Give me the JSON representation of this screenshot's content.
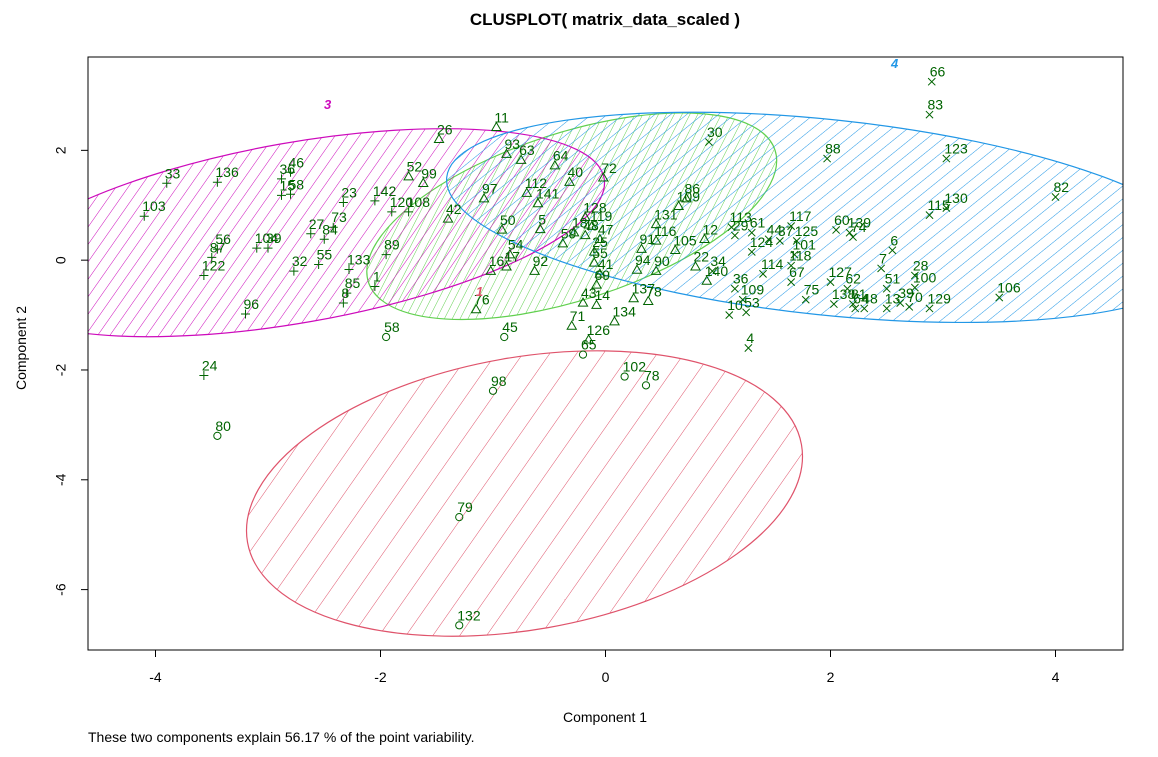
{
  "chart_data": {
    "type": "scatter",
    "title": "CLUSPLOT( matrix_data_scaled )",
    "xlabel": "Component 1",
    "ylabel": "Component 2",
    "caption": "These two components explain 56.17 % of the point variability.",
    "xlim": [
      -4.6,
      4.6
    ],
    "ylim": [
      -7.1,
      3.7
    ],
    "xticks": [
      -4,
      -2,
      0,
      2,
      4
    ],
    "yticks": [
      -6,
      -4,
      -2,
      0,
      2
    ],
    "grid": false,
    "point_color": "#006400",
    "clusters": [
      {
        "label": "1",
        "color": "#DF536B",
        "ellipse": {
          "cx": -0.72,
          "cy": -4.25,
          "rx": 2.5,
          "ry": 2.48,
          "angle": -10
        }
      },
      {
        "label": "2",
        "color": "#61D04F",
        "ellipse": {
          "cx": -0.3,
          "cy": 0.8,
          "rx": 1.9,
          "ry": 1.52,
          "angle": -18
        }
      },
      {
        "label": "3",
        "color": "#CD0BBC",
        "ellipse": {
          "cx": -2.75,
          "cy": 0.5,
          "rx": 2.78,
          "ry": 1.64,
          "angle": -10
        }
      },
      {
        "label": "4",
        "color": "#2297E6",
        "ellipse": {
          "cx": 1.97,
          "cy": 0.78,
          "rx": 3.4,
          "ry": 1.78,
          "angle": 6
        }
      }
    ],
    "cluster_label_points": [
      {
        "label": "1",
        "x": -1.12,
        "y": -0.65
      },
      {
        "label": "3",
        "x": -2.47,
        "y": 2.75
      },
      {
        "label": "4",
        "x": 2.57,
        "y": 3.5
      }
    ],
    "points": [
      {
        "id": "58",
        "x": -1.95,
        "y": -1.4,
        "cluster": 1
      },
      {
        "id": "45",
        "x": -0.9,
        "y": -1.4,
        "cluster": 1
      },
      {
        "id": "65",
        "x": -0.2,
        "y": -1.72,
        "cluster": 1
      },
      {
        "id": "102",
        "x": 0.17,
        "y": -2.12,
        "cluster": 1
      },
      {
        "id": "78",
        "x": 0.36,
        "y": -2.28,
        "cluster": 1
      },
      {
        "id": "98",
        "x": -1.0,
        "y": -2.38,
        "cluster": 1
      },
      {
        "id": "80",
        "x": -3.45,
        "y": -3.2,
        "cluster": 1
      },
      {
        "id": "79",
        "x": -1.3,
        "y": -4.68,
        "cluster": 1
      },
      {
        "id": "132",
        "x": -1.3,
        "y": -6.65,
        "cluster": 1
      },
      {
        "id": "11",
        "x": -0.97,
        "y": 2.42,
        "cluster": 2
      },
      {
        "id": "26",
        "x": -1.48,
        "y": 2.2,
        "cluster": 2
      },
      {
        "id": "93",
        "x": -0.88,
        "y": 1.93,
        "cluster": 2
      },
      {
        "id": "63",
        "x": -0.75,
        "y": 1.82,
        "cluster": 2
      },
      {
        "id": "64",
        "x": -0.45,
        "y": 1.72,
        "cluster": 2
      },
      {
        "id": "72",
        "x": -0.02,
        "y": 1.5,
        "cluster": 2
      },
      {
        "id": "40",
        "x": -0.32,
        "y": 1.42,
        "cluster": 2
      },
      {
        "id": "52",
        "x": -1.75,
        "y": 1.52,
        "cluster": 2
      },
      {
        "id": "99",
        "x": -1.62,
        "y": 1.4,
        "cluster": 2
      },
      {
        "id": "112",
        "x": -0.7,
        "y": 1.22,
        "cluster": 2
      },
      {
        "id": "97",
        "x": -1.08,
        "y": 1.12,
        "cluster": 2
      },
      {
        "id": "141",
        "x": -0.6,
        "y": 1.03,
        "cluster": 2
      },
      {
        "id": "42",
        "x": -1.4,
        "y": 0.75,
        "cluster": 2
      },
      {
        "id": "128",
        "x": -0.18,
        "y": 0.78,
        "cluster": 2
      },
      {
        "id": "50",
        "x": -0.92,
        "y": 0.55,
        "cluster": 2
      },
      {
        "id": "5",
        "x": -0.58,
        "y": 0.56,
        "cluster": 2
      },
      {
        "id": "119",
        "x": -0.12,
        "y": 0.62,
        "cluster": 2
      },
      {
        "id": "18",
        "x": -0.28,
        "y": 0.5,
        "cluster": 2
      },
      {
        "id": "48",
        "x": -0.18,
        "y": 0.45,
        "cluster": 2
      },
      {
        "id": "59",
        "x": -0.38,
        "y": 0.3,
        "cluster": 2
      },
      {
        "id": "47",
        "x": -0.05,
        "y": 0.38,
        "cluster": 2
      },
      {
        "id": "25",
        "x": -0.1,
        "y": 0.15,
        "cluster": 2
      },
      {
        "id": "54",
        "x": -0.85,
        "y": 0.1,
        "cluster": 2
      },
      {
        "id": "16",
        "x": -1.02,
        "y": -0.2,
        "cluster": 2
      },
      {
        "id": "17",
        "x": -0.88,
        "y": -0.12,
        "cluster": 2
      },
      {
        "id": "92",
        "x": -0.63,
        "y": -0.2,
        "cluster": 2
      },
      {
        "id": "55a",
        "x": -0.1,
        "y": -0.05,
        "cluster": 2
      },
      {
        "id": "41",
        "x": -0.05,
        "y": -0.25,
        "cluster": 2
      },
      {
        "id": "69",
        "x": -0.08,
        "y": -0.45,
        "cluster": 2
      },
      {
        "id": "43",
        "x": -0.2,
        "y": -0.78,
        "cluster": 2
      },
      {
        "id": "14",
        "x": -0.08,
        "y": -0.82,
        "cluster": 2
      },
      {
        "id": "71",
        "x": -0.3,
        "y": -1.2,
        "cluster": 2
      },
      {
        "id": "76",
        "x": -1.15,
        "y": -0.9,
        "cluster": 2
      },
      {
        "id": "126",
        "x": -0.15,
        "y": -1.45,
        "cluster": 2
      },
      {
        "id": "134",
        "x": 0.08,
        "y": -1.12,
        "cluster": 2
      },
      {
        "id": "137",
        "x": 0.25,
        "y": -0.7,
        "cluster": 2
      },
      {
        "id": "78a",
        "x": 0.38,
        "y": -0.75,
        "cluster": 2
      },
      {
        "id": "131",
        "x": 0.45,
        "y": 0.65,
        "cluster": 2
      },
      {
        "id": "109",
        "x": 0.65,
        "y": 0.98,
        "cluster": 2
      },
      {
        "id": "86",
        "x": 0.72,
        "y": 1.12,
        "cluster": 2
      },
      {
        "id": "94",
        "x": 0.28,
        "y": -0.18,
        "cluster": 2
      },
      {
        "id": "91",
        "x": 0.32,
        "y": 0.2,
        "cluster": 2
      },
      {
        "id": "116",
        "x": 0.45,
        "y": 0.35,
        "cluster": 2
      },
      {
        "id": "105",
        "x": 0.62,
        "y": 0.18,
        "cluster": 2
      },
      {
        "id": "90",
        "x": 0.45,
        "y": -0.2,
        "cluster": 2
      },
      {
        "id": "12",
        "x": 0.88,
        "y": 0.38,
        "cluster": 2
      },
      {
        "id": "22",
        "x": 0.8,
        "y": -0.12,
        "cluster": 2
      },
      {
        "id": "140",
        "x": 0.9,
        "y": -0.38,
        "cluster": 2
      },
      {
        "id": "33",
        "x": -3.9,
        "y": 1.4,
        "cluster": 3
      },
      {
        "id": "136",
        "x": -3.45,
        "y": 1.42,
        "cluster": 3
      },
      {
        "id": "46",
        "x": -2.8,
        "y": 1.6,
        "cluster": 3
      },
      {
        "id": "36",
        "x": -2.88,
        "y": 1.48,
        "cluster": 3
      },
      {
        "id": "15",
        "x": -2.88,
        "y": 1.18,
        "cluster": 3
      },
      {
        "id": "58b",
        "x": -2.8,
        "y": 1.2,
        "cluster": 3
      },
      {
        "id": "103",
        "x": -4.1,
        "y": 0.8,
        "cluster": 3
      },
      {
        "id": "23",
        "x": -2.33,
        "y": 1.05,
        "cluster": 3
      },
      {
        "id": "142",
        "x": -2.05,
        "y": 1.08,
        "cluster": 3
      },
      {
        "id": "120",
        "x": -1.9,
        "y": 0.88,
        "cluster": 3
      },
      {
        "id": "108",
        "x": -1.75,
        "y": 0.88,
        "cluster": 3
      },
      {
        "id": "73",
        "x": -2.42,
        "y": 0.6,
        "cluster": 3
      },
      {
        "id": "27",
        "x": -2.62,
        "y": 0.48,
        "cluster": 3
      },
      {
        "id": "84",
        "x": -2.5,
        "y": 0.38,
        "cluster": 3
      },
      {
        "id": "104",
        "x": -3.1,
        "y": 0.22,
        "cluster": 3
      },
      {
        "id": "39",
        "x": -3.0,
        "y": 0.22,
        "cluster": 3
      },
      {
        "id": "56",
        "x": -3.45,
        "y": 0.2,
        "cluster": 3
      },
      {
        "id": "87",
        "x": -3.5,
        "y": 0.05,
        "cluster": 3
      },
      {
        "id": "122",
        "x": -3.57,
        "y": -0.28,
        "cluster": 3
      },
      {
        "id": "89",
        "x": -1.95,
        "y": 0.1,
        "cluster": 3
      },
      {
        "id": "55",
        "x": -2.55,
        "y": -0.08,
        "cluster": 3
      },
      {
        "id": "32",
        "x": -2.77,
        "y": -0.2,
        "cluster": 3
      },
      {
        "id": "133",
        "x": -2.28,
        "y": -0.17,
        "cluster": 3
      },
      {
        "id": "85",
        "x": -2.3,
        "y": -0.6,
        "cluster": 3
      },
      {
        "id": "8",
        "x": -2.33,
        "y": -0.78,
        "cluster": 3
      },
      {
        "id": "1",
        "x": -2.05,
        "y": -0.48,
        "cluster": 3
      },
      {
        "id": "96",
        "x": -3.2,
        "y": -0.98,
        "cluster": 3
      },
      {
        "id": "24",
        "x": -3.57,
        "y": -2.1,
        "cluster": 3
      },
      {
        "id": "30",
        "x": 0.92,
        "y": 2.15,
        "cluster": 4
      },
      {
        "id": "66",
        "x": 2.9,
        "y": 3.25,
        "cluster": 4
      },
      {
        "id": "83",
        "x": 2.88,
        "y": 2.65,
        "cluster": 4
      },
      {
        "id": "88",
        "x": 1.97,
        "y": 1.85,
        "cluster": 4
      },
      {
        "id": "123",
        "x": 3.03,
        "y": 1.85,
        "cluster": 4
      },
      {
        "id": "82",
        "x": 4.0,
        "y": 1.15,
        "cluster": 4
      },
      {
        "id": "130",
        "x": 3.03,
        "y": 0.95,
        "cluster": 4
      },
      {
        "id": "115",
        "x": 2.88,
        "y": 0.82,
        "cluster": 4
      },
      {
        "id": "113",
        "x": 1.12,
        "y": 0.6,
        "cluster": 4
      },
      {
        "id": "117",
        "x": 1.65,
        "y": 0.62,
        "cluster": 4
      },
      {
        "id": "61",
        "x": 1.3,
        "y": 0.5,
        "cluster": 4
      },
      {
        "id": "29",
        "x": 1.15,
        "y": 0.45,
        "cluster": 4
      },
      {
        "id": "44",
        "x": 1.45,
        "y": 0.38,
        "cluster": 4
      },
      {
        "id": "37",
        "x": 1.55,
        "y": 0.35,
        "cluster": 4
      },
      {
        "id": "125",
        "x": 1.7,
        "y": 0.35,
        "cluster": 4
      },
      {
        "id": "60",
        "x": 2.05,
        "y": 0.55,
        "cluster": 4
      },
      {
        "id": "139",
        "x": 2.17,
        "y": 0.5,
        "cluster": 4
      },
      {
        "id": "74",
        "x": 2.2,
        "y": 0.42,
        "cluster": 4
      },
      {
        "id": "124",
        "x": 1.3,
        "y": 0.15,
        "cluster": 4
      },
      {
        "id": "101",
        "x": 1.68,
        "y": 0.1,
        "cluster": 4
      },
      {
        "id": "6",
        "x": 2.55,
        "y": 0.18,
        "cluster": 4
      },
      {
        "id": "7",
        "x": 2.45,
        "y": -0.15,
        "cluster": 4
      },
      {
        "id": "118",
        "x": 1.65,
        "y": -0.1,
        "cluster": 4
      },
      {
        "id": "114",
        "x": 1.4,
        "y": -0.25,
        "cluster": 4
      },
      {
        "id": "67",
        "x": 1.65,
        "y": -0.4,
        "cluster": 4
      },
      {
        "id": "34",
        "x": 0.95,
        "y": -0.2,
        "cluster": 4
      },
      {
        "id": "127",
        "x": 2.0,
        "y": -0.4,
        "cluster": 4
      },
      {
        "id": "62",
        "x": 2.15,
        "y": -0.52,
        "cluster": 4
      },
      {
        "id": "28",
        "x": 2.75,
        "y": -0.28,
        "cluster": 4
      },
      {
        "id": "51",
        "x": 2.5,
        "y": -0.52,
        "cluster": 4
      },
      {
        "id": "100",
        "x": 2.75,
        "y": -0.5,
        "cluster": 4
      },
      {
        "id": "36b",
        "x": 1.15,
        "y": -0.52,
        "cluster": 4
      },
      {
        "id": "75",
        "x": 1.78,
        "y": -0.72,
        "cluster": 4
      },
      {
        "id": "138",
        "x": 2.03,
        "y": -0.8,
        "cluster": 4
      },
      {
        "id": "81",
        "x": 2.2,
        "y": -0.8,
        "cluster": 4
      },
      {
        "id": "64b",
        "x": 2.22,
        "y": -0.88,
        "cluster": 4
      },
      {
        "id": "48b",
        "x": 2.3,
        "y": -0.88,
        "cluster": 4
      },
      {
        "id": "13",
        "x": 2.5,
        "y": -0.88,
        "cluster": 4
      },
      {
        "id": "39b",
        "x": 2.62,
        "y": -0.78,
        "cluster": 4
      },
      {
        "id": "70",
        "x": 2.7,
        "y": -0.85,
        "cluster": 4
      },
      {
        "id": "129",
        "x": 2.88,
        "y": -0.88,
        "cluster": 4
      },
      {
        "id": "109b",
        "x": 1.22,
        "y": -0.72,
        "cluster": 4
      },
      {
        "id": "10",
        "x": 1.1,
        "y": -1.0,
        "cluster": 4
      },
      {
        "id": "53",
        "x": 1.25,
        "y": -0.95,
        "cluster": 4
      },
      {
        "id": "106",
        "x": 3.5,
        "y": -0.68,
        "cluster": 4
      },
      {
        "id": "4",
        "x": 1.27,
        "y": -1.6,
        "cluster": 4
      }
    ],
    "label_texts": {
      "55a": "55",
      "58b": "58",
      "36b": "36",
      "64b": "64",
      "48b": "48",
      "39b": "39",
      "78a": "78",
      "109b": "109"
    }
  }
}
